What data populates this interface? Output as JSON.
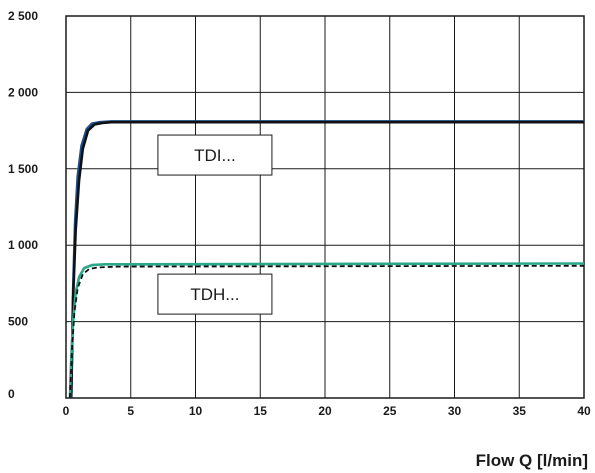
{
  "chart_data": {
    "type": "line",
    "title": "",
    "xlabel": "Flow Q [l/min]",
    "ylabel": "",
    "xlim": [
      0,
      40
    ],
    "ylim": [
      0,
      2500
    ],
    "xticks": [
      0,
      5,
      10,
      15,
      20,
      25,
      30,
      35,
      40
    ],
    "yticks": [
      0,
      500,
      1000,
      1500,
      2000,
      2500
    ],
    "xtick_labels": [
      "0",
      "5",
      "10",
      "15",
      "20",
      "25",
      "30",
      "35",
      "40"
    ],
    "ytick_labels": [
      "0",
      "500",
      "1 000",
      "1 500",
      "2 000",
      "2 500"
    ],
    "grid": true,
    "series": [
      {
        "group": "TDI",
        "color": "#1f4e8c",
        "style": "solid",
        "points": [
          [
            0.4,
            0
          ],
          [
            0.55,
            700
          ],
          [
            0.7,
            1150
          ],
          [
            0.9,
            1450
          ],
          [
            1.2,
            1650
          ],
          [
            1.6,
            1760
          ],
          [
            2.0,
            1795
          ],
          [
            2.6,
            1805
          ],
          [
            3.5,
            1810
          ],
          [
            5,
            1810
          ],
          [
            40,
            1810
          ]
        ]
      },
      {
        "group": "TDI",
        "color": "#111111",
        "style": "solid",
        "points": [
          [
            0.4,
            0
          ],
          [
            0.55,
            650
          ],
          [
            0.75,
            1100
          ],
          [
            1.0,
            1420
          ],
          [
            1.3,
            1630
          ],
          [
            1.7,
            1750
          ],
          [
            2.2,
            1790
          ],
          [
            2.8,
            1800
          ],
          [
            3.5,
            1805
          ],
          [
            40,
            1805
          ]
        ]
      },
      {
        "group": "TDH",
        "color": "#2aa88a",
        "style": "solid",
        "points": [
          [
            0.3,
            0
          ],
          [
            0.4,
            250
          ],
          [
            0.55,
            500
          ],
          [
            0.75,
            690
          ],
          [
            1.0,
            790
          ],
          [
            1.4,
            850
          ],
          [
            2.0,
            870
          ],
          [
            3.0,
            875
          ],
          [
            5,
            875
          ],
          [
            40,
            880
          ]
        ]
      },
      {
        "group": "TDH",
        "color": "#111111",
        "style": "dashed",
        "points": [
          [
            0.3,
            0
          ],
          [
            0.45,
            300
          ],
          [
            0.65,
            560
          ],
          [
            0.9,
            720
          ],
          [
            1.3,
            810
          ],
          [
            1.8,
            845
          ],
          [
            2.5,
            855
          ],
          [
            4,
            860
          ],
          [
            40,
            865
          ]
        ]
      }
    ],
    "annotations": [
      {
        "text": "TDI...",
        "x": 11.5,
        "y": 1590
      },
      {
        "text": "TDH...",
        "x": 11.5,
        "y": 680
      }
    ]
  }
}
